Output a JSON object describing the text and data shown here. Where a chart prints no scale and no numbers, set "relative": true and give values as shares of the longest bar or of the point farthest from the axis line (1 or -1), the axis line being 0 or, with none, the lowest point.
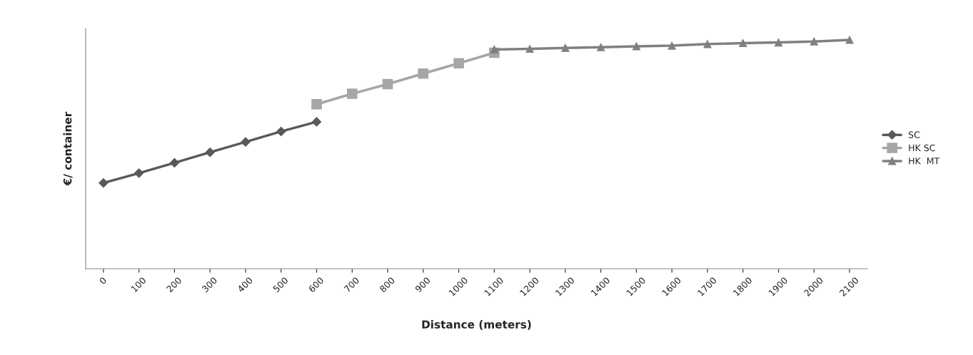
{
  "chart_data": {
    "type": "line",
    "xlabel": "Distance (meters)",
    "ylabel": "€/ container",
    "relative": true,
    "categories": [
      "0",
      "100",
      "200",
      "300",
      "400",
      "500",
      "600",
      "700",
      "800",
      "900",
      "1000",
      "1100",
      "1200",
      "1300",
      "1400",
      "1500",
      "1600",
      "1700",
      "1800",
      "1900",
      "2000",
      "2100"
    ],
    "series": [
      {
        "name": "SC",
        "color": "#595959",
        "marker": "diamond",
        "values": [
          0.375,
          0.418,
          0.463,
          0.509,
          0.554,
          0.6,
          0.642,
          null,
          null,
          null,
          null,
          null,
          null,
          null,
          null,
          null,
          null,
          null,
          null,
          null,
          null,
          null
        ]
      },
      {
        "name": "HK SC",
        "color": "#a6a6a6",
        "marker": "square",
        "values": [
          null,
          null,
          null,
          null,
          null,
          null,
          0.719,
          0.765,
          0.807,
          0.853,
          0.898,
          0.944,
          null,
          null,
          null,
          null,
          null,
          null,
          null,
          null,
          null,
          null
        ]
      },
      {
        "name": "HK  MT",
        "color": "#808080",
        "marker": "triangle",
        "values": [
          null,
          null,
          null,
          null,
          null,
          null,
          null,
          null,
          null,
          null,
          null,
          0.958,
          0.961,
          0.965,
          0.968,
          0.972,
          0.975,
          0.982,
          0.986,
          0.989,
          0.993,
          1.0
        ]
      }
    ],
    "legend": "right",
    "grid": false
  }
}
